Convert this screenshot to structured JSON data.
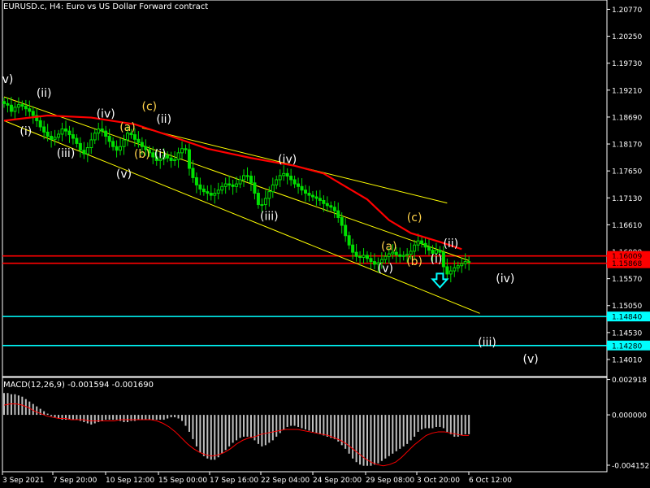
{
  "header": {
    "title": "EURUSD.c, H4:  Euro vs US Dollar Forward contract"
  },
  "chart_data": [
    {
      "type": "candlestick",
      "symbol": "EURUSD.c",
      "timeframe": "H4",
      "title": "EURUSD.c, H4:  Euro vs US Dollar Forward contract",
      "ylim": [
        1.1368,
        1.2095
      ],
      "yticks": [
        "1.20770",
        "1.20250",
        "1.19730",
        "1.19210",
        "1.18690",
        "1.18170",
        "1.17650",
        "1.17130",
        "1.16610",
        "1.16090",
        "1.15570",
        "1.15050",
        "1.14530",
        "1.14010"
      ],
      "xticks": [
        "3 Sep 2021",
        "7 Sep 20:00",
        "10 Sep 12:00",
        "15 Sep 00:00",
        "17 Sep 16:00",
        "22 Sep 04:00",
        "24 Sep 20:00",
        "29 Sep 08:00",
        "3 Oct 20:00",
        "6 Oct 12:00"
      ],
      "grid": false,
      "colors": {
        "background": "#000000",
        "candles": "#00e000",
        "moving_average": "#ff0000",
        "channel": "#ffff00",
        "resistance": "#ff0000",
        "target": "#00ffff",
        "wave_white": "#ffffff",
        "wave_yellow": "#ffd24a"
      },
      "close_series": [
        1.1895,
        1.1892,
        1.188,
        1.1888,
        1.1893,
        1.189,
        1.1885,
        1.188,
        1.1872,
        1.1862,
        1.185,
        1.184,
        1.1832,
        1.1826,
        1.183,
        1.1836,
        1.1846,
        1.1842,
        1.1835,
        1.1828,
        1.1818,
        1.1805,
        1.1798,
        1.181,
        1.1825,
        1.1838,
        1.1846,
        1.1842,
        1.1832,
        1.1822,
        1.1812,
        1.1805,
        1.1812,
        1.1825,
        1.1838,
        1.1835,
        1.1826,
        1.182,
        1.1812,
        1.1806,
        1.18,
        1.1792,
        1.1785,
        1.1788,
        1.1795,
        1.179,
        1.1785,
        1.1787,
        1.18,
        1.1808,
        1.1806,
        1.177,
        1.1752,
        1.1738,
        1.173,
        1.1725,
        1.1722,
        1.1718,
        1.1722,
        1.1728,
        1.1735,
        1.174,
        1.1738,
        1.1735,
        1.174,
        1.1748,
        1.1756,
        1.1755,
        1.1742,
        1.1722,
        1.17,
        1.17,
        1.1712,
        1.1725,
        1.1738,
        1.1748,
        1.1756,
        1.176,
        1.1755,
        1.1748,
        1.174,
        1.1735,
        1.1728,
        1.1722,
        1.1718,
        1.1715,
        1.1712,
        1.1708,
        1.1702,
        1.1698,
        1.1695,
        1.1688,
        1.1675,
        1.166,
        1.164,
        1.1622,
        1.1608,
        1.16,
        1.1598,
        1.1602,
        1.1596,
        1.159,
        1.1585,
        1.1588,
        1.1594,
        1.16,
        1.1605,
        1.1608,
        1.1603,
        1.16,
        1.1602,
        1.1604,
        1.161,
        1.1622,
        1.163,
        1.1625,
        1.1618,
        1.1612,
        1.1606,
        1.1612,
        1.1608,
        1.158,
        1.1566,
        1.1572,
        1.1578,
        1.1582,
        1.1586,
        1.159,
        1.1589
      ],
      "moving_average": [
        [
          1.1862,
          0
        ],
        [
          1.1872,
          12
        ],
        [
          1.1868,
          24
        ],
        [
          1.1855,
          36
        ],
        [
          1.1832,
          46
        ],
        [
          1.1808,
          56
        ],
        [
          1.179,
          68
        ],
        [
          1.1775,
          80
        ],
        [
          1.176,
          88
        ],
        [
          1.1735,
          94
        ],
        [
          1.171,
          100
        ],
        [
          1.167,
          106
        ],
        [
          1.1645,
          112
        ],
        [
          1.1628,
          120
        ],
        [
          1.1614,
          126
        ]
      ],
      "resistance_levels": [
        {
          "label": "1.16009",
          "value": 1.16009,
          "bar": 1.16009
        },
        {
          "label": "1.15868",
          "value": 1.15868,
          "bar": 1.15868
        }
      ],
      "target_levels": [
        {
          "label": "1.14840",
          "value": 1.1484
        },
        {
          "label": "1.14280",
          "value": 1.1428
        }
      ],
      "channel_lines": [
        {
          "from": [
            0,
            1.1908
          ],
          "to": [
            128,
            1.1592
          ]
        },
        {
          "from": [
            38,
            1.1848
          ],
          "to": [
            122,
            1.1703
          ]
        },
        {
          "from": [
            0,
            1.1862
          ],
          "to": [
            131,
            1.149
          ]
        }
      ],
      "down_arrow": {
        "bar": 120,
        "price": 1.1548
      },
      "wave_labels": [
        {
          "text": "v)",
          "bar": 1,
          "price": 1.1935,
          "color": "white"
        },
        {
          "text": "(ii)",
          "bar": 11,
          "price": 1.1908,
          "color": "white"
        },
        {
          "text": "(i)",
          "bar": 6,
          "price": 1.1834,
          "color": "white"
        },
        {
          "text": "(iii)",
          "bar": 17,
          "price": 1.1792,
          "color": "white"
        },
        {
          "text": "(iv)",
          "bar": 28,
          "price": 1.1868,
          "color": "white"
        },
        {
          "text": "(c)",
          "bar": 40,
          "price": 1.1882,
          "color": "yellow"
        },
        {
          "text": "(a)",
          "bar": 34,
          "price": 1.1842,
          "color": "yellow"
        },
        {
          "text": "(ii)",
          "bar": 44,
          "price": 1.1858,
          "color": "white"
        },
        {
          "text": "(b)",
          "bar": 38,
          "price": 1.179,
          "color": "yellow"
        },
        {
          "text": "(i)",
          "bar": 43,
          "price": 1.179,
          "color": "white"
        },
        {
          "text": "(v)",
          "bar": 33,
          "price": 1.1752,
          "color": "white"
        },
        {
          "text": "(iv)",
          "bar": 78,
          "price": 1.178,
          "color": "white"
        },
        {
          "text": "(iii)",
          "bar": 73,
          "price": 1.167,
          "color": "white"
        },
        {
          "text": "(c)",
          "bar": 113,
          "price": 1.1668,
          "color": "yellow"
        },
        {
          "text": "(a)",
          "bar": 106,
          "price": 1.1612,
          "color": "yellow"
        },
        {
          "text": "(ii)",
          "bar": 123,
          "price": 1.1618,
          "color": "white"
        },
        {
          "text": "(b)",
          "bar": 113,
          "price": 1.1583,
          "color": "yellow"
        },
        {
          "text": "(i)",
          "bar": 119,
          "price": 1.1588,
          "color": "white"
        },
        {
          "text": "(v)",
          "bar": 105,
          "price": 1.157,
          "color": "white"
        },
        {
          "text": "(iv)",
          "bar": 138,
          "price": 1.155,
          "color": "white"
        },
        {
          "text": "(iii)",
          "bar": 133,
          "price": 1.1427,
          "color": "white"
        },
        {
          "text": "(v)",
          "bar": 145,
          "price": 1.1395,
          "color": "white"
        }
      ]
    },
    {
      "type": "histogram",
      "title": "MACD(12,26,9) -0.001594 -0.001690",
      "indicator": "MACD(12,26,9)",
      "ylim": [
        -0.00469,
        0.00309
      ],
      "yticks": [
        "0.002918",
        "0.000000",
        "-0.004152"
      ],
      "histogram": [
        0.0018,
        0.0018,
        0.0017,
        0.0017,
        0.0016,
        0.0015,
        0.0013,
        0.0011,
        0.0009,
        0.0007,
        0.0005,
        0.0003,
        0.0001,
        -0.0001,
        -0.0002,
        -0.0003,
        -0.0004,
        -0.0004,
        -0.0004,
        -0.0004,
        -0.0004,
        -0.0005,
        -0.0006,
        -0.0007,
        -0.0008,
        -0.0007,
        -0.0006,
        -0.0005,
        -0.0004,
        -0.0004,
        -0.0004,
        -0.0004,
        -0.0005,
        -0.0006,
        -0.0006,
        -0.0005,
        -0.0005,
        -0.0004,
        -0.0004,
        -0.0004,
        -0.0004,
        -0.0004,
        -0.0004,
        -0.0004,
        -0.0004,
        -0.0003,
        -0.0002,
        -0.0002,
        -0.0003,
        -0.0005,
        -0.0009,
        -0.0014,
        -0.002,
        -0.0026,
        -0.0031,
        -0.0034,
        -0.0036,
        -0.0037,
        -0.0037,
        -0.0035,
        -0.0032,
        -0.0029,
        -0.0026,
        -0.0023,
        -0.0021,
        -0.0019,
        -0.0018,
        -0.0018,
        -0.0019,
        -0.0021,
        -0.0024,
        -0.0026,
        -0.0025,
        -0.0023,
        -0.0021,
        -0.0018,
        -0.0015,
        -0.0012,
        -0.001,
        -0.0009,
        -0.0009,
        -0.001,
        -0.0011,
        -0.0012,
        -0.0013,
        -0.0014,
        -0.0015,
        -0.0016,
        -0.0017,
        -0.0018,
        -0.0019,
        -0.002,
        -0.0022,
        -0.0025,
        -0.0028,
        -0.0032,
        -0.0036,
        -0.0039,
        -0.0041,
        -0.0042,
        -0.0042,
        -0.0042,
        -0.0041,
        -0.004,
        -0.0038,
        -0.0036,
        -0.0034,
        -0.0032,
        -0.003,
        -0.0028,
        -0.0026,
        -0.0024,
        -0.0021,
        -0.0018,
        -0.0014,
        -0.0012,
        -0.0011,
        -0.0011,
        -0.0011,
        -0.001,
        -0.001,
        -0.0011,
        -0.0014,
        -0.0016,
        -0.0018,
        -0.0018,
        -0.0017,
        -0.0016,
        -0.0016
      ],
      "signal": [
        0.0008,
        0.0009,
        0.0009,
        0.0008,
        0.0006,
        0.0003,
        0.0001,
        -0.0001,
        -0.0002,
        -0.0003,
        -0.0003,
        -0.0004,
        -0.0004,
        -0.0004,
        -0.0005,
        -0.0005,
        -0.0005,
        -0.0005,
        -0.0005,
        -0.0004,
        -0.0004,
        -0.0004,
        -0.0004,
        -0.0004,
        -0.0004,
        -0.0005,
        -0.0007,
        -0.001,
        -0.0014,
        -0.0019,
        -0.0024,
        -0.0028,
        -0.0031,
        -0.0033,
        -0.0034,
        -0.0033,
        -0.0031,
        -0.0028,
        -0.0024,
        -0.0021,
        -0.0019,
        -0.0018,
        -0.0016,
        -0.0015,
        -0.0014,
        -0.0013,
        -0.0012,
        -0.0012,
        -0.0012,
        -0.0013,
        -0.0014,
        -0.0015,
        -0.0016,
        -0.0017,
        -0.0019,
        -0.0021,
        -0.0024,
        -0.0028,
        -0.0032,
        -0.0036,
        -0.0039,
        -0.0041,
        -0.0042,
        -0.0041,
        -0.0039,
        -0.0035,
        -0.003,
        -0.0025,
        -0.0021,
        -0.0017,
        -0.0015,
        -0.0014,
        -0.0014,
        -0.0015,
        -0.0016,
        -0.0017,
        -0.0017
      ],
      "colors": {
        "histogram": "#c0c0c0",
        "signal": "#ff0000"
      }
    }
  ]
}
